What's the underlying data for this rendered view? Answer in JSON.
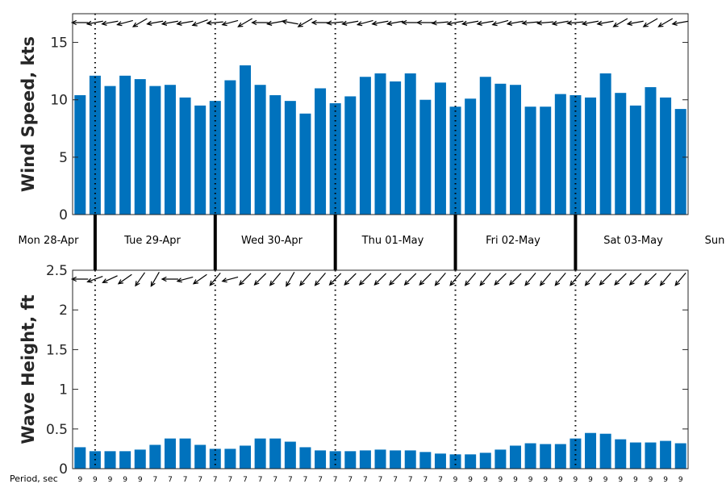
{
  "chart_data": [
    {
      "type": "bar",
      "ylabel": "Wind Speed, kts",
      "ylim": [
        0,
        17.5
      ],
      "yticks": [
        "0",
        "5",
        "10",
        "15"
      ],
      "ytick_values": [
        0,
        5,
        10,
        15
      ],
      "values": [
        10.4,
        12.1,
        11.2,
        12.1,
        11.8,
        11.2,
        11.3,
        10.2,
        9.5,
        9.9,
        11.7,
        13.0,
        11.3,
        10.4,
        9.9,
        8.8,
        11.0,
        9.7,
        10.3,
        12.0,
        12.3,
        11.6,
        12.3,
        10.0,
        11.5,
        9.4,
        10.1,
        12.0,
        11.4,
        11.3,
        9.4,
        9.4,
        10.5,
        10.4,
        10.2,
        12.3,
        10.6,
        9.5,
        11.1,
        10.2,
        9.2
      ],
      "direction_arrows_deg": [
        180,
        190,
        190,
        195,
        210,
        190,
        190,
        190,
        200,
        185,
        195,
        210,
        180,
        190,
        170,
        210,
        180,
        185,
        190,
        195,
        190,
        190,
        180,
        180,
        185,
        190,
        190,
        190,
        195,
        190,
        185,
        185,
        190,
        185,
        190,
        190,
        210,
        190,
        210,
        210,
        190
      ],
      "grid": false
    },
    {
      "type": "bar",
      "ylabel": "Wave Height, ft",
      "ylim": [
        0,
        2.5
      ],
      "yticks": [
        "0",
        "0.5",
        "1",
        "1.5",
        "2",
        "2.5"
      ],
      "ytick_values": [
        0,
        0.5,
        1,
        1.5,
        2,
        2.5
      ],
      "values": [
        0.27,
        0.22,
        0.22,
        0.22,
        0.24,
        0.3,
        0.38,
        0.38,
        0.3,
        0.25,
        0.25,
        0.29,
        0.38,
        0.38,
        0.34,
        0.27,
        0.23,
        0.22,
        0.22,
        0.23,
        0.24,
        0.23,
        0.23,
        0.21,
        0.19,
        0.18,
        0.18,
        0.2,
        0.24,
        0.29,
        0.32,
        0.31,
        0.31,
        0.38,
        0.45,
        0.44,
        0.37,
        0.33,
        0.33,
        0.35,
        0.32
      ],
      "direction_arrows_deg": [
        180,
        200,
        205,
        215,
        235,
        240,
        180,
        195,
        215,
        230,
        195,
        225,
        225,
        230,
        240,
        230,
        230,
        225,
        225,
        225,
        225,
        225,
        225,
        225,
        230,
        230,
        230,
        230,
        225,
        225,
        230,
        230,
        230,
        230,
        230,
        225,
        225,
        225,
        225,
        230,
        230
      ],
      "grid": false
    }
  ],
  "days": [
    "Mon 28-Apr",
    "Tue 29-Apr",
    "Wed 30-Apr",
    "Thu 01-May",
    "Fri 02-May",
    "Sat 03-May",
    "Sun"
  ],
  "period_label": "Period, sec",
  "periods": [
    "9",
    "9",
    "9",
    "9",
    "9",
    "7",
    "7",
    "7",
    "7",
    "7",
    "7",
    "7",
    "7",
    "7",
    "7",
    "7",
    "7",
    "7",
    "7",
    "7",
    "7",
    "7",
    "7",
    "7",
    "7",
    "9",
    "9",
    "9",
    "9",
    "9",
    "9",
    "9",
    "9",
    "9",
    "9",
    "9",
    "9",
    "9",
    "9",
    "9",
    "9"
  ],
  "colors": {
    "bar": "#0072BD",
    "axis": "#262626"
  }
}
